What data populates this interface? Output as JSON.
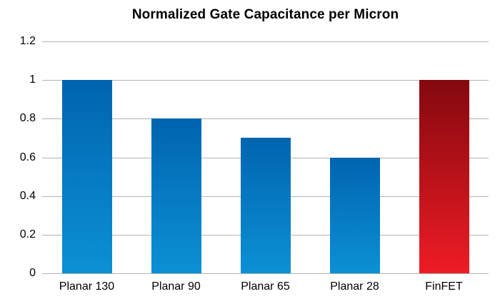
{
  "chart_data": {
    "type": "bar",
    "title": "Normalized Gate Capacitance per Micron",
    "categories": [
      "Planar 130",
      "Planar 90",
      "Planar 65",
      "Planar 28",
      "FinFET"
    ],
    "values": [
      1.0,
      0.8,
      0.7,
      0.6,
      1.0
    ],
    "series": [
      {
        "name": "Normalized Gate Capacitance",
        "values": [
          1.0,
          0.8,
          0.7,
          0.6,
          1.0
        ]
      }
    ],
    "bars": [
      {
        "label": "Planar 130",
        "value": 1.0,
        "color_top": "#0064b0",
        "color_bottom": "#0c90d5"
      },
      {
        "label": "Planar 90",
        "value": 0.8,
        "color_top": "#0064b0",
        "color_bottom": "#0c90d5"
      },
      {
        "label": "Planar 65",
        "value": 0.7,
        "color_top": "#0064b0",
        "color_bottom": "#0c90d5"
      },
      {
        "label": "Planar 28",
        "value": 0.6,
        "color_top": "#0064b0",
        "color_bottom": "#0c90d5"
      },
      {
        "label": "FinFET",
        "value": 1.0,
        "color_top": "#84080f",
        "color_bottom": "#ee1c25"
      }
    ],
    "xlabel": "",
    "ylabel": "",
    "ylim": [
      0,
      1.2
    ],
    "yticks": [
      {
        "label": "1.2",
        "value": 1.2
      },
      {
        "label": "1",
        "value": 1.0
      },
      {
        "label": "0.8",
        "value": 0.8
      },
      {
        "label": "0.6",
        "value": 0.6
      },
      {
        "label": "0.4",
        "value": 0.4
      },
      {
        "label": "0.2",
        "value": 0.2
      },
      {
        "label": "0",
        "value": 0.0
      }
    ],
    "grid": true,
    "gridline_color": "#b3b3b3",
    "legend": "none",
    "background_color": "#ffffff",
    "accent_blue": "#0a84c9",
    "accent_red": "#d42027"
  }
}
